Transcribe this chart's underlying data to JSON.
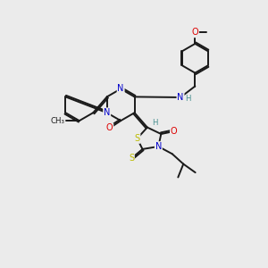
{
  "background_color": "#ebebeb",
  "bond_color": "#1a1a1a",
  "atom_colors": {
    "N": "#0000cc",
    "O": "#dd0000",
    "S": "#bbbb00",
    "H": "#4a9090",
    "C": "#1a1a1a"
  },
  "figsize": [
    3.0,
    3.0
  ],
  "dpi": 100
}
